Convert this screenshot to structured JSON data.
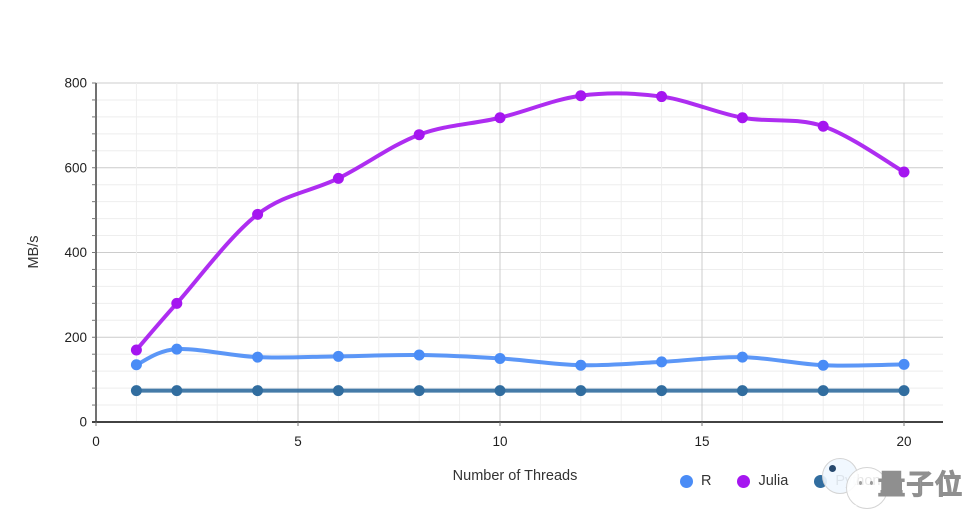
{
  "chart_data": {
    "type": "line",
    "title": "",
    "xlabel": "Number of Threads",
    "ylabel": "MB/s",
    "x": [
      1,
      2,
      4,
      6,
      8,
      10,
      12,
      14,
      16,
      18,
      20
    ],
    "series": [
      {
        "name": "R",
        "color": "#4a8cf6",
        "values": [
          135,
          172,
          153,
          155,
          158,
          150,
          134,
          142,
          153,
          134,
          136
        ]
      },
      {
        "name": "Julia",
        "color": "#a516f0",
        "values": [
          170,
          280,
          490,
          575,
          678,
          718,
          770,
          768,
          718,
          698,
          590
        ]
      },
      {
        "name": "Python",
        "color": "#316d9f",
        "values": [
          74,
          74,
          74,
          74,
          74,
          74,
          74,
          74,
          74,
          74,
          74
        ]
      }
    ],
    "x_ticks": [
      0,
      5,
      10,
      15,
      20
    ],
    "y_ticks": [
      0,
      200,
      400,
      600,
      800
    ],
    "xlim": [
      0,
      21
    ],
    "ylim": [
      0,
      800
    ],
    "x_minor_step": 1,
    "y_minor_step": 40,
    "grid": "major+minor",
    "legend_position": "bottom-right"
  },
  "watermark": {
    "text": "量子位",
    "logo": "qbitai-chat-bubble-faces"
  },
  "colors": {
    "background": "#ffffff",
    "grid_major": "#cccccc",
    "grid_minor": "#eeeeee",
    "axis": "#424242",
    "tick_label": "#1f1f1f",
    "axis_title": "#333333"
  }
}
